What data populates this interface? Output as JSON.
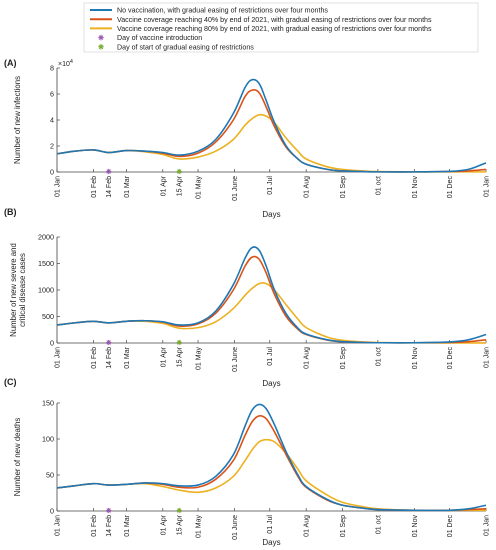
{
  "legend": {
    "position": "top",
    "series": [
      {
        "label": "No vaccination, with gradual easing of restrictions over four months",
        "color": "#1f77b4"
      },
      {
        "label": "Vaccine coverage reaching 40% by end of 2021, with gradual easing of restrictions over four months",
        "color": "#d95319"
      },
      {
        "label": "Vaccine coverage reaching 80% by end of 2021, with gradual easing of restrictions over four months",
        "color": "#edb120"
      }
    ],
    "markers": [
      {
        "label": "Day of vaccine introduction",
        "color": "#9b59b6",
        "symbol": "*"
      },
      {
        "label": "Day of start of gradual easing of restrictions",
        "color": "#77ac30",
        "symbol": "*"
      }
    ]
  },
  "chart_data": [
    {
      "type": "line",
      "panel_label": "(A)",
      "ylabel": "Number of new infections",
      "xlabel": "Days",
      "y_multiplier": "×10",
      "y_exponent": "4",
      "ylim": [
        0,
        8
      ],
      "yticks": [
        0,
        2,
        4,
        6,
        8
      ],
      "ytick_labels": [
        "0",
        "2",
        "4",
        "6",
        "8"
      ],
      "xlim": [
        0,
        365
      ],
      "xticks": [
        0,
        31,
        44,
        59,
        90,
        104,
        120,
        151,
        181,
        212,
        243,
        273,
        304,
        334,
        365
      ],
      "xtick_labels": [
        "01 Jan",
        "01 Feb",
        "14 Feb",
        "01 Mar",
        "01 Apr",
        "15 Apr",
        "01 May",
        "01 June",
        "01 Jul",
        "01 Aug",
        "01 Sep",
        "01 oct",
        "01 Nov",
        "01 Dec",
        "01 Jan"
      ],
      "vaccine_day": 44,
      "easing_day": 104,
      "x": [
        0,
        15,
        31,
        44,
        59,
        75,
        90,
        104,
        120,
        135,
        150,
        160,
        166,
        172,
        178,
        185,
        195,
        205,
        212,
        230,
        243,
        260,
        273,
        304,
        334,
        350,
        365
      ],
      "series": [
        {
          "name": "No vaccination, with gradual easing of restrictions over four months",
          "color": "#1f77b4",
          "values": [
            1.4,
            1.6,
            1.7,
            1.5,
            1.65,
            1.6,
            1.5,
            1.3,
            1.6,
            2.5,
            4.5,
            6.5,
            7.1,
            6.8,
            5.5,
            3.8,
            2.0,
            1.0,
            0.6,
            0.2,
            0.08,
            0.03,
            0.01,
            0.01,
            0.05,
            0.2,
            0.7
          ]
        },
        {
          "name": "Vaccine coverage reaching 40% by end of 2021, with gradual easing of restrictions over four months",
          "color": "#d95319",
          "values": [
            1.4,
            1.6,
            1.7,
            1.5,
            1.65,
            1.6,
            1.45,
            1.2,
            1.45,
            2.3,
            4.0,
            5.8,
            6.3,
            6.1,
            5.0,
            3.5,
            1.9,
            1.0,
            0.6,
            0.2,
            0.08,
            0.03,
            0.01,
            0.01,
            0.03,
            0.08,
            0.2
          ]
        },
        {
          "name": "Vaccine coverage reaching 80% by end of 2021, with gradual easing of restrictions over four months",
          "color": "#edb120",
          "values": [
            1.4,
            1.6,
            1.7,
            1.5,
            1.65,
            1.55,
            1.35,
            1.0,
            1.15,
            1.6,
            2.5,
            3.6,
            4.1,
            4.4,
            4.3,
            3.8,
            2.6,
            1.6,
            1.0,
            0.4,
            0.2,
            0.08,
            0.03,
            0.01,
            0.01,
            0.01,
            0.01
          ]
        }
      ]
    },
    {
      "type": "line",
      "panel_label": "(B)",
      "ylabel": "Number of new severe and critical disease cases",
      "xlabel": "Days",
      "ylim": [
        0,
        2000
      ],
      "yticks": [
        0,
        500,
        1000,
        1500,
        2000
      ],
      "ytick_labels": [
        "0",
        "500",
        "1000",
        "1500",
        "2000"
      ],
      "xlim": [
        0,
        365
      ],
      "xticks": [
        0,
        31,
        44,
        59,
        90,
        104,
        120,
        151,
        181,
        212,
        243,
        273,
        304,
        334,
        365
      ],
      "xtick_labels": [
        "01 Jan",
        "01 Feb",
        "14 Feb",
        "01 Mar",
        "01 Apr",
        "15 Apr",
        "01 May",
        "01 June",
        "01 Jul",
        "01 Aug",
        "01 Sep",
        "01 oct",
        "01 Nov",
        "01 Dec",
        "01 Jan"
      ],
      "vaccine_day": 44,
      "easing_day": 104,
      "x": [
        0,
        15,
        31,
        44,
        59,
        75,
        90,
        104,
        120,
        135,
        150,
        160,
        166,
        172,
        178,
        185,
        195,
        205,
        212,
        230,
        243,
        260,
        273,
        304,
        334,
        350,
        365
      ],
      "series": [
        {
          "name": "No vaccination, with gradual easing of restrictions over four months",
          "color": "#1f77b4",
          "values": [
            340,
            380,
            410,
            380,
            410,
            420,
            400,
            340,
            380,
            600,
            1100,
            1600,
            1800,
            1750,
            1450,
            1000,
            550,
            280,
            170,
            60,
            25,
            10,
            5,
            5,
            20,
            60,
            160
          ]
        },
        {
          "name": "Vaccine coverage reaching 40% by end of 2021, with gradual easing of restrictions over four months",
          "color": "#d95319",
          "values": [
            340,
            380,
            410,
            380,
            410,
            420,
            395,
            320,
            360,
            560,
            1000,
            1450,
            1620,
            1580,
            1320,
            920,
            500,
            260,
            160,
            55,
            22,
            10,
            5,
            5,
            10,
            25,
            60
          ]
        },
        {
          "name": "Vaccine coverage reaching 80% by end of 2021, with gradual easing of restrictions over four months",
          "color": "#edb120",
          "values": [
            340,
            380,
            410,
            380,
            410,
            410,
            370,
            280,
            290,
            400,
            650,
            900,
            1030,
            1120,
            1120,
            1000,
            720,
            450,
            290,
            110,
            50,
            20,
            8,
            3,
            2,
            2,
            2
          ]
        }
      ]
    },
    {
      "type": "line",
      "panel_label": "(C)",
      "ylabel": "Number of new deaths",
      "xlabel": "Days",
      "ylim": [
        0,
        150
      ],
      "yticks": [
        0,
        50,
        100,
        150
      ],
      "ytick_labels": [
        "0",
        "50",
        "100",
        "150"
      ],
      "xlim": [
        0,
        365
      ],
      "xticks": [
        0,
        31,
        44,
        59,
        90,
        104,
        120,
        151,
        181,
        212,
        243,
        273,
        304,
        334,
        365
      ],
      "xtick_labels": [
        "01 Jan",
        "01 Feb",
        "14 Feb",
        "01 Mar",
        "01 Apr",
        "15 Apr",
        "01 May",
        "01 June",
        "01 Jul",
        "01 Aug",
        "01 Sep",
        "01 oct",
        "01 Nov",
        "01 Dec",
        "01 Jan"
      ],
      "vaccine_day": 44,
      "easing_day": 104,
      "x": [
        0,
        15,
        31,
        44,
        59,
        75,
        90,
        104,
        120,
        135,
        150,
        160,
        166,
        172,
        178,
        185,
        195,
        205,
        212,
        230,
        243,
        260,
        273,
        304,
        334,
        350,
        365
      ],
      "series": [
        {
          "name": "No vaccination, with gradual easing of restrictions over four months",
          "color": "#1f77b4",
          "values": [
            32,
            35,
            38,
            36,
            37,
            39,
            38,
            35,
            36,
            48,
            78,
            118,
            140,
            148,
            142,
            120,
            82,
            50,
            34,
            16,
            8,
            4,
            2,
            1,
            1,
            3,
            8
          ]
        },
        {
          "name": "Vaccine coverage reaching 40% by end of 2021, with gradual easing of restrictions over four months",
          "color": "#d95319",
          "values": [
            32,
            35,
            38,
            36,
            37,
            39,
            37,
            33,
            33,
            44,
            70,
            105,
            124,
            132,
            128,
            110,
            78,
            48,
            33,
            15,
            8,
            4,
            2,
            1,
            1,
            2,
            3
          ]
        },
        {
          "name": "Vaccine coverage reaching 80% by end of 2021, with gradual easing of restrictions over four months",
          "color": "#edb120",
          "values": [
            32,
            35,
            38,
            36,
            37,
            38,
            34,
            29,
            26,
            32,
            48,
            70,
            85,
            96,
            99,
            96,
            80,
            58,
            42,
            22,
            12,
            6,
            3,
            1,
            1,
            1,
            1
          ]
        }
      ]
    }
  ]
}
